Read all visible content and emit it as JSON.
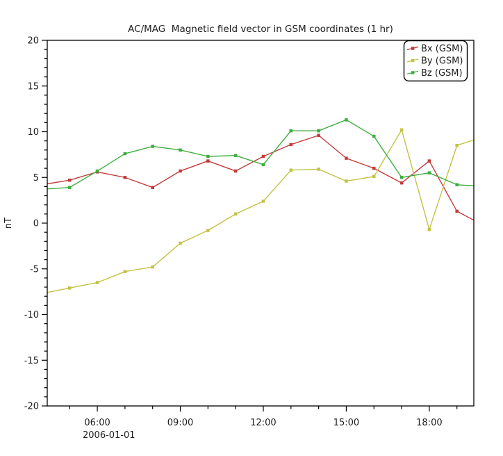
{
  "title": "AC/MAG  Magnetic field vector in GSM coordinates (1 hr)",
  "y_axis": {
    "label": "nT",
    "min": -20,
    "max": 20,
    "major_values": [
      20,
      15,
      10,
      5,
      0,
      -5,
      -10,
      -15,
      -20
    ],
    "tick_labels": [
      "20",
      "15",
      "10",
      "5",
      "0",
      "-5",
      "-10",
      "-15",
      "-20"
    ],
    "minor_step": 1
  },
  "x_axis": {
    "date_label": "2006-01-01",
    "major_tick_hours": [
      6,
      9,
      12,
      15,
      18
    ],
    "major_tick_labels": [
      "06:00",
      "09:00",
      "12:00",
      "15:00",
      "18:00"
    ],
    "minor_step_hours": 1
  },
  "legend": {
    "items": [
      {
        "label": "Bx (GSM)",
        "color": "#c43b3b"
      },
      {
        "label": "By (GSM)",
        "color": "#c2c246"
      },
      {
        "label": "Bz (GSM)",
        "color": "#3dae3d"
      }
    ]
  },
  "chart_data": {
    "type": "line",
    "title": "AC/MAG  Magnetic field vector in GSM coordinates (1 hr)",
    "ylabel": "nT",
    "ylim": [
      -20,
      20
    ],
    "xlim_hours": [
      4.19,
      19.61
    ],
    "grid": false,
    "legend_position": "top-right",
    "markers": "square",
    "x_hours": [
      4,
      5,
      6,
      7,
      8,
      9,
      10,
      11,
      12,
      13,
      14,
      15,
      16,
      17,
      18,
      19,
      20
    ],
    "series": [
      {
        "name": "Bx (GSM)",
        "color": "#c43b3b",
        "values": [
          4.2,
          4.7,
          5.6,
          5.0,
          3.9,
          5.7,
          6.8,
          5.7,
          7.3,
          8.6,
          9.6,
          7.1,
          6.0,
          4.4,
          6.8,
          1.3,
          -0.3
        ]
      },
      {
        "name": "By (GSM)",
        "color": "#c2c246",
        "values": [
          -7.7,
          -7.1,
          -6.5,
          -5.3,
          -4.8,
          -2.2,
          -0.8,
          1.0,
          2.4,
          5.8,
          5.9,
          4.6,
          5.1,
          10.2,
          -0.7,
          8.5,
          9.5
        ]
      },
      {
        "name": "Bz (GSM)",
        "color": "#3dae3d",
        "values": [
          3.7,
          3.9,
          5.7,
          7.6,
          8.4,
          8.0,
          7.3,
          7.4,
          6.4,
          10.1,
          10.1,
          11.3,
          9.5,
          5.0,
          5.5,
          4.2,
          4.0
        ]
      }
    ]
  }
}
